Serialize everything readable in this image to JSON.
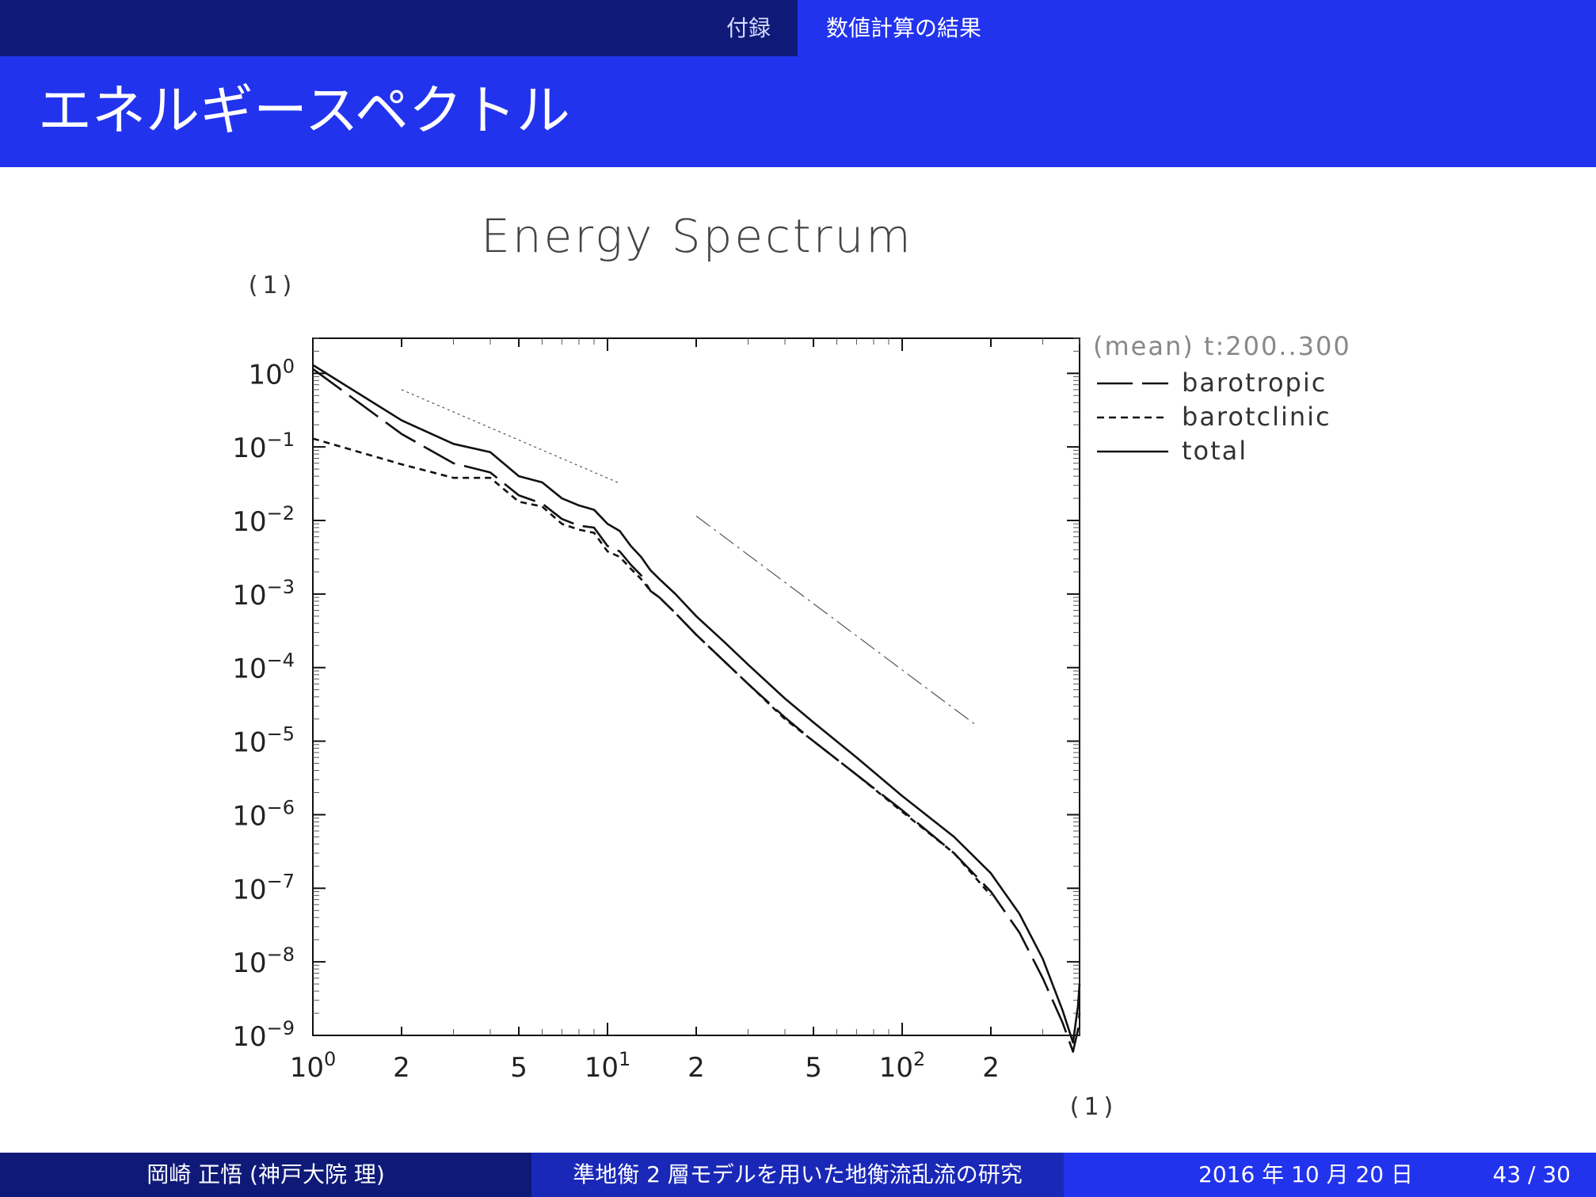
{
  "header": {
    "section": "付録",
    "subsection": "数値計算の結果"
  },
  "slide_title": "エネルギースペクトル",
  "footer": {
    "author": "岡崎 正悟  (神戸大院 理)",
    "title": "準地衡 2 層モデルを用いた地衡流乱流の研究",
    "date": "2016 年 10 月 20 日",
    "page": "43 / 30"
  },
  "chart_data": {
    "type": "line",
    "title": "Energy Spectrum",
    "xlabel": "(1)",
    "ylabel": "(1)",
    "x_scale": "log",
    "y_scale": "log",
    "xlim": [
      1,
      400
    ],
    "ylim": [
      1e-09,
      3
    ],
    "x_ticks": [
      {
        "value": 1,
        "base": "10",
        "exp": "0"
      },
      {
        "value": 2,
        "base": "2",
        "exp": ""
      },
      {
        "value": 5,
        "base": "5",
        "exp": ""
      },
      {
        "value": 10,
        "base": "10",
        "exp": "1"
      },
      {
        "value": 20,
        "base": "2",
        "exp": ""
      },
      {
        "value": 50,
        "base": "5",
        "exp": ""
      },
      {
        "value": 100,
        "base": "10",
        "exp": "2"
      },
      {
        "value": 200,
        "base": "2",
        "exp": ""
      }
    ],
    "y_ticks": [
      {
        "value": 1,
        "base": "10",
        "exp": "0"
      },
      {
        "value": 0.1,
        "base": "10",
        "exp": "−1"
      },
      {
        "value": 0.01,
        "base": "10",
        "exp": "−2"
      },
      {
        "value": 0.001,
        "base": "10",
        "exp": "−3"
      },
      {
        "value": 0.0001,
        "base": "10",
        "exp": "−4"
      },
      {
        "value": 1e-05,
        "base": "10",
        "exp": "−5"
      },
      {
        "value": 1e-06,
        "base": "10",
        "exp": "−6"
      },
      {
        "value": 1e-07,
        "base": "10",
        "exp": "−7"
      },
      {
        "value": 1e-08,
        "base": "10",
        "exp": "−8"
      },
      {
        "value": 1e-09,
        "base": "10",
        "exp": "−9"
      }
    ],
    "legend": {
      "header": "(mean) t:200..300",
      "position": "right, outside plot"
    },
    "series": [
      {
        "name": "barotropic",
        "style": "long-dash",
        "x": [
          1,
          2,
          3,
          4,
          5,
          6,
          7,
          8,
          9,
          10,
          11,
          12,
          13,
          14,
          15,
          17,
          20,
          25,
          30,
          40,
          50,
          70,
          100,
          150,
          200,
          250,
          300,
          350,
          380,
          395,
          400
        ],
        "y": [
          1.15,
          0.15,
          0.06,
          0.045,
          0.022,
          0.017,
          0.0105,
          0.0085,
          0.008,
          0.0045,
          0.0038,
          0.0025,
          0.0018,
          0.0011,
          0.0009,
          0.00055,
          0.00028,
          0.00012,
          6e-05,
          2.1e-05,
          1e-05,
          3.5e-06,
          1.15e-06,
          3e-07,
          9e-08,
          2.5e-08,
          6e-09,
          1.5e-09,
          6e-10,
          1.2e-09,
          2e-09
        ]
      },
      {
        "name": "barotclinic",
        "style": "short-dash",
        "x": [
          1,
          2,
          3,
          4,
          5,
          6,
          7,
          8,
          9,
          10,
          11,
          12,
          13,
          14,
          15,
          17,
          20,
          25,
          30,
          40,
          50,
          70,
          100,
          150,
          200
        ],
        "y": [
          0.13,
          0.058,
          0.038,
          0.038,
          0.018,
          0.0155,
          0.009,
          0.0075,
          0.0068,
          0.0038,
          0.0032,
          0.0022,
          0.0016,
          0.0011,
          0.0009,
          0.00055,
          0.00028,
          0.00012,
          6e-05,
          2e-05,
          1e-05,
          3.5e-06,
          1.1e-06,
          3e-07,
          8e-08
        ]
      },
      {
        "name": "total",
        "style": "solid",
        "x": [
          1,
          2,
          3,
          4,
          5,
          6,
          7,
          8,
          9,
          10,
          11,
          12,
          13,
          14,
          15,
          17,
          20,
          25,
          30,
          40,
          50,
          70,
          100,
          150,
          200,
          250,
          300,
          350,
          380,
          395,
          400
        ],
        "y": [
          1.3,
          0.23,
          0.11,
          0.085,
          0.04,
          0.033,
          0.02,
          0.016,
          0.014,
          0.009,
          0.0072,
          0.0045,
          0.0032,
          0.0021,
          0.0016,
          0.001,
          0.0005,
          0.00022,
          0.00011,
          3.8e-05,
          1.8e-05,
          6e-06,
          1.8e-06,
          5e-07,
          1.6e-07,
          4.5e-08,
          1.1e-08,
          2.2e-09,
          8e-10,
          2.5e-09,
          5e-09
        ]
      }
    ],
    "reference_lines": [
      {
        "style": "dotted",
        "x": [
          2,
          11
        ],
        "y": [
          0.6,
          0.032
        ]
      },
      {
        "style": "dash-dot",
        "x": [
          20,
          180
        ],
        "y": [
          0.0115,
          1.6e-05
        ]
      }
    ]
  }
}
